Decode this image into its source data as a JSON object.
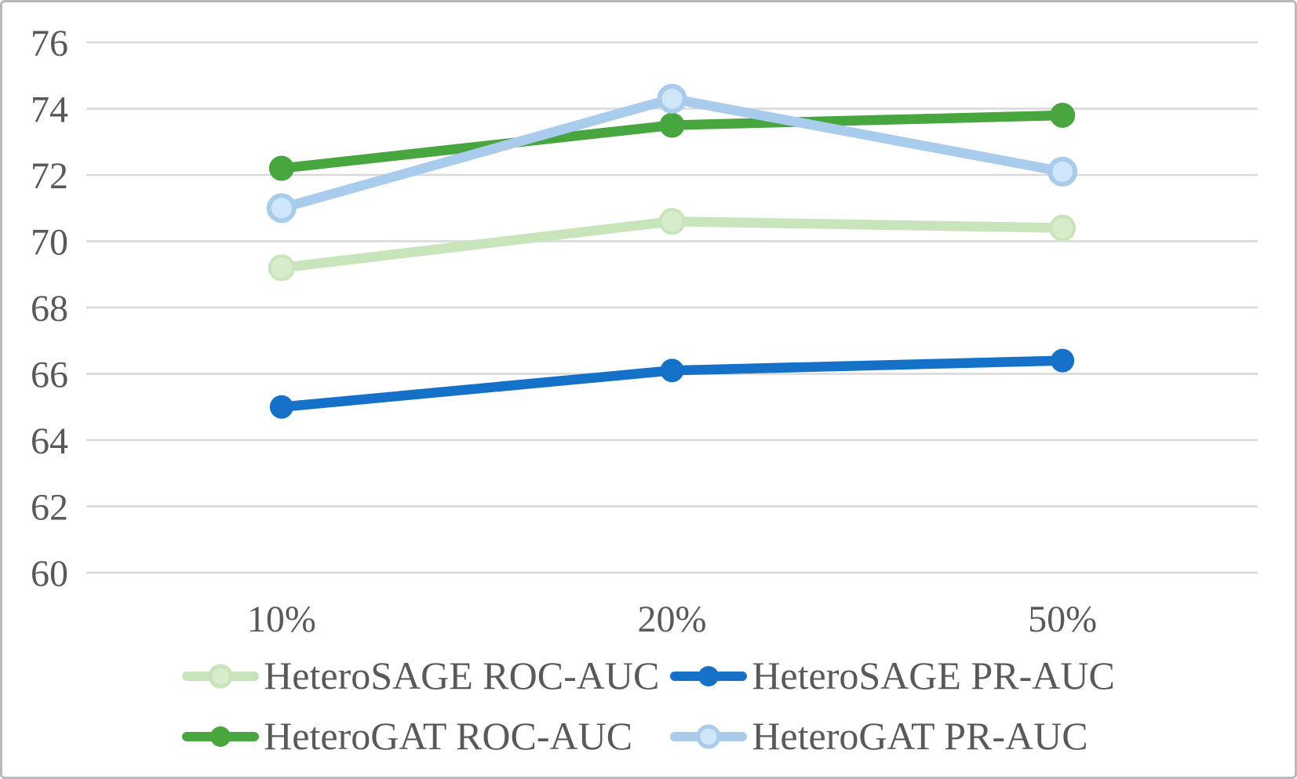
{
  "chart_data": {
    "type": "line",
    "title": "",
    "xlabel": "",
    "ylabel": "",
    "categories": [
      "10%",
      "20%",
      "50%"
    ],
    "series": [
      {
        "name": "HeteroSAGE ROC-AUC",
        "color": "#C8E4BB",
        "marker_fill": "#D7ECCB",
        "values": [
          69.2,
          70.6,
          70.4
        ]
      },
      {
        "name": "HeteroSAGE PR-AUC",
        "color": "#1471C7",
        "marker_fill": "#1471C7",
        "values": [
          65.0,
          66.1,
          66.4
        ]
      },
      {
        "name": "HeteroGAT ROC-AUC",
        "color": "#47A63D",
        "marker_fill": "#47A63D",
        "values": [
          72.2,
          73.5,
          73.8
        ]
      },
      {
        "name": "HeteroGAT PR-AUC",
        "color": "#A9CBEC",
        "marker_fill": "#CEE6F8",
        "values": [
          71.0,
          74.3,
          72.1
        ]
      }
    ],
    "ylim": [
      60,
      76
    ],
    "yticks": [
      60,
      62,
      64,
      66,
      68,
      70,
      72,
      74,
      76
    ],
    "grid": true,
    "legend_position": "bottom",
    "axis_text_color": "#595959",
    "gridline_color": "#D9D9D9"
  }
}
